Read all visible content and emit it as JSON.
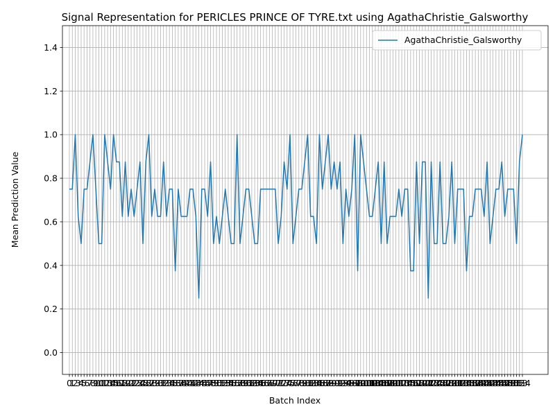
{
  "chart_data": {
    "type": "line",
    "title": "Signal Representation for PERICLES PRINCE OF TYRE.txt using AgathaChristie_Galsworthy",
    "xlabel": "Batch Index",
    "ylabel": "Mean Prediction Value",
    "ylim": [
      -0.1,
      1.5
    ],
    "yticks": [
      0.0,
      0.2,
      0.4,
      0.6,
      0.8,
      1.0,
      1.2,
      1.4
    ],
    "grid": true,
    "legend_position": "upper right",
    "line_color": "#1f77b4",
    "series": [
      {
        "name": "AgathaChristie_Galsworthy",
        "values": [
          0.75,
          0.75,
          1.0,
          0.625,
          0.5,
          0.75,
          0.75,
          0.875,
          1.0,
          0.75,
          0.5,
          0.5,
          1.0,
          0.875,
          0.75,
          1.0,
          0.875,
          0.875,
          0.625,
          0.875,
          0.625,
          0.75,
          0.625,
          0.75,
          0.875,
          0.5,
          0.875,
          1.0,
          0.625,
          0.75,
          0.625,
          0.625,
          0.875,
          0.625,
          0.75,
          0.75,
          0.375,
          0.75,
          0.625,
          0.625,
          0.625,
          0.75,
          0.75,
          0.625,
          0.25,
          0.75,
          0.75,
          0.625,
          0.875,
          0.5,
          0.625,
          0.5,
          0.625,
          0.75,
          0.625,
          0.5,
          0.5,
          1.0,
          0.5,
          0.625,
          0.75,
          0.75,
          0.625,
          0.5,
          0.5,
          0.75,
          0.75,
          0.75,
          0.75,
          0.75,
          0.75,
          0.5,
          0.625,
          0.875,
          0.75,
          1.0,
          0.5,
          0.625,
          0.75,
          0.75,
          0.875,
          1.0,
          0.625,
          0.625,
          0.5,
          1.0,
          0.75,
          0.875,
          1.0,
          0.75,
          0.875,
          0.75,
          0.875,
          0.5,
          0.75,
          0.625,
          0.75,
          1.0,
          0.375,
          1.0,
          0.875,
          0.75,
          0.625,
          0.625,
          0.75,
          0.875,
          0.5,
          0.875,
          0.5,
          0.625,
          0.625,
          0.625,
          0.75,
          0.625,
          0.75,
          0.75,
          0.375,
          0.375,
          0.875,
          0.5,
          0.875,
          0.875,
          0.25,
          0.875,
          0.5,
          0.5,
          0.875,
          0.5,
          0.5,
          0.625,
          0.875,
          0.5,
          0.75,
          0.75,
          0.75,
          0.375,
          0.625,
          0.625,
          0.75,
          0.75,
          0.75,
          0.625,
          0.875,
          0.5,
          0.625,
          0.75,
          0.75,
          0.875,
          0.625,
          0.75,
          0.75,
          0.75,
          0.5,
          0.875,
          1.0
        ]
      }
    ]
  }
}
